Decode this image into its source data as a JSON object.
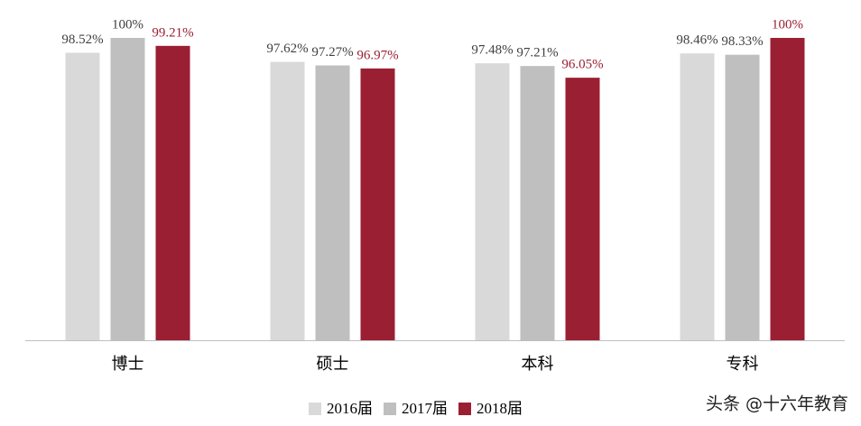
{
  "chart_data": {
    "type": "bar",
    "categories": [
      "博士",
      "硕士",
      "本科",
      "专科"
    ],
    "series": [
      {
        "name": "2016届",
        "color": "#d9d9d9",
        "label_color": "#404040",
        "values": [
          98.52,
          97.62,
          97.48,
          98.46
        ],
        "value_labels": [
          "98.52%",
          "97.62%",
          "97.48%",
          "98.46%"
        ]
      },
      {
        "name": "2017届",
        "color": "#bfbfbf",
        "label_color": "#404040",
        "values": [
          100,
          97.27,
          97.21,
          98.33
        ],
        "value_labels": [
          "100%",
          "97.27%",
          "97.21%",
          "98.33%"
        ]
      },
      {
        "name": "2018届",
        "color": "#9b1f33",
        "label_color": "#9b1f33",
        "values": [
          99.21,
          96.97,
          96.05,
          100
        ],
        "value_labels": [
          "99.21%",
          "96.97%",
          "96.05%",
          "100%"
        ]
      }
    ],
    "ylim": [
      70,
      100
    ],
    "legend": "bottom"
  },
  "watermark": "头条 @十六年教育"
}
